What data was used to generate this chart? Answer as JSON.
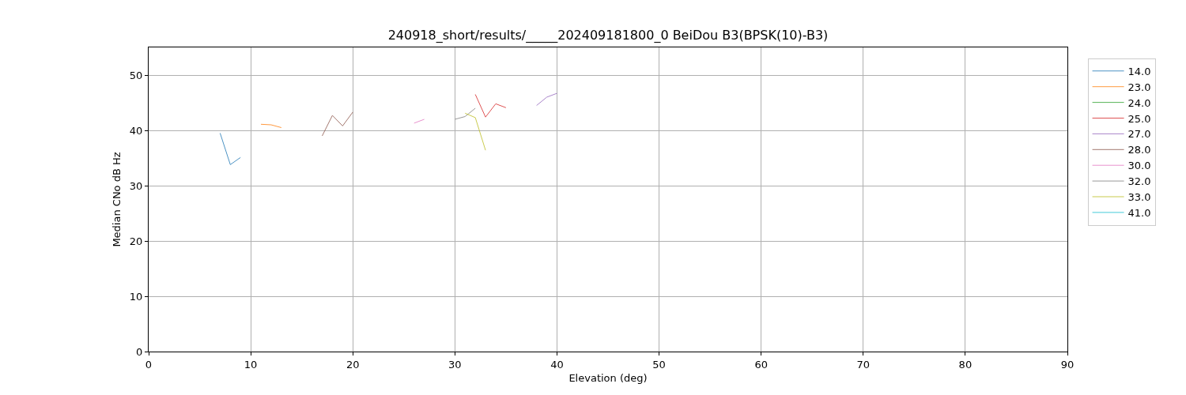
{
  "chart_data": {
    "type": "line",
    "title": "240918_short/results/_____202409181800_0 BeiDou B3(BPSK(10)-B3)",
    "xlabel": "Elevation (deg)",
    "ylabel": "Median CNo dB Hz",
    "xlim": [
      0,
      90
    ],
    "xticks": [
      0,
      10,
      20,
      30,
      40,
      50,
      60,
      70,
      80,
      90
    ],
    "ylim": [
      0,
      55
    ],
    "yticks": [
      0,
      10,
      20,
      30,
      40,
      50
    ],
    "grid": true,
    "legend": "top right",
    "series": [
      {
        "name": "14.0",
        "color": "#1f77b4",
        "x": [
          7,
          8,
          9
        ],
        "values": [
          39.5,
          33.8,
          35.1
        ]
      },
      {
        "name": "23.0",
        "color": "#ff7f0e",
        "x": [
          11,
          12,
          13
        ],
        "values": [
          41.1,
          41.0,
          40.5
        ]
      },
      {
        "name": "24.0",
        "color": "#2ca02c"
      },
      {
        "name": "25.0",
        "color": "#d62728",
        "x": [
          32,
          33,
          34,
          35
        ],
        "values": [
          46.5,
          42.4,
          44.8,
          44.1
        ]
      },
      {
        "name": "27.0",
        "color": "#9467bd",
        "x": [
          38,
          39,
          40
        ],
        "values": [
          44.5,
          46.0,
          46.7
        ]
      },
      {
        "name": "28.0",
        "color": "#8c564b",
        "x": [
          17,
          18,
          19,
          20
        ],
        "values": [
          39.0,
          42.7,
          40.8,
          43.3
        ]
      },
      {
        "name": "30.0",
        "color": "#e377c2",
        "x": [
          26,
          27
        ],
        "values": [
          41.3,
          42.0
        ]
      },
      {
        "name": "32.0",
        "color": "#7f7f7f",
        "x": [
          30,
          31,
          32
        ],
        "values": [
          42.0,
          42.5,
          44.0
        ]
      },
      {
        "name": "33.0",
        "color": "#bcbd22",
        "x": [
          31,
          32,
          33
        ],
        "values": [
          43.1,
          42.3,
          36.4
        ]
      },
      {
        "name": "41.0",
        "color": "#17becf"
      }
    ]
  }
}
